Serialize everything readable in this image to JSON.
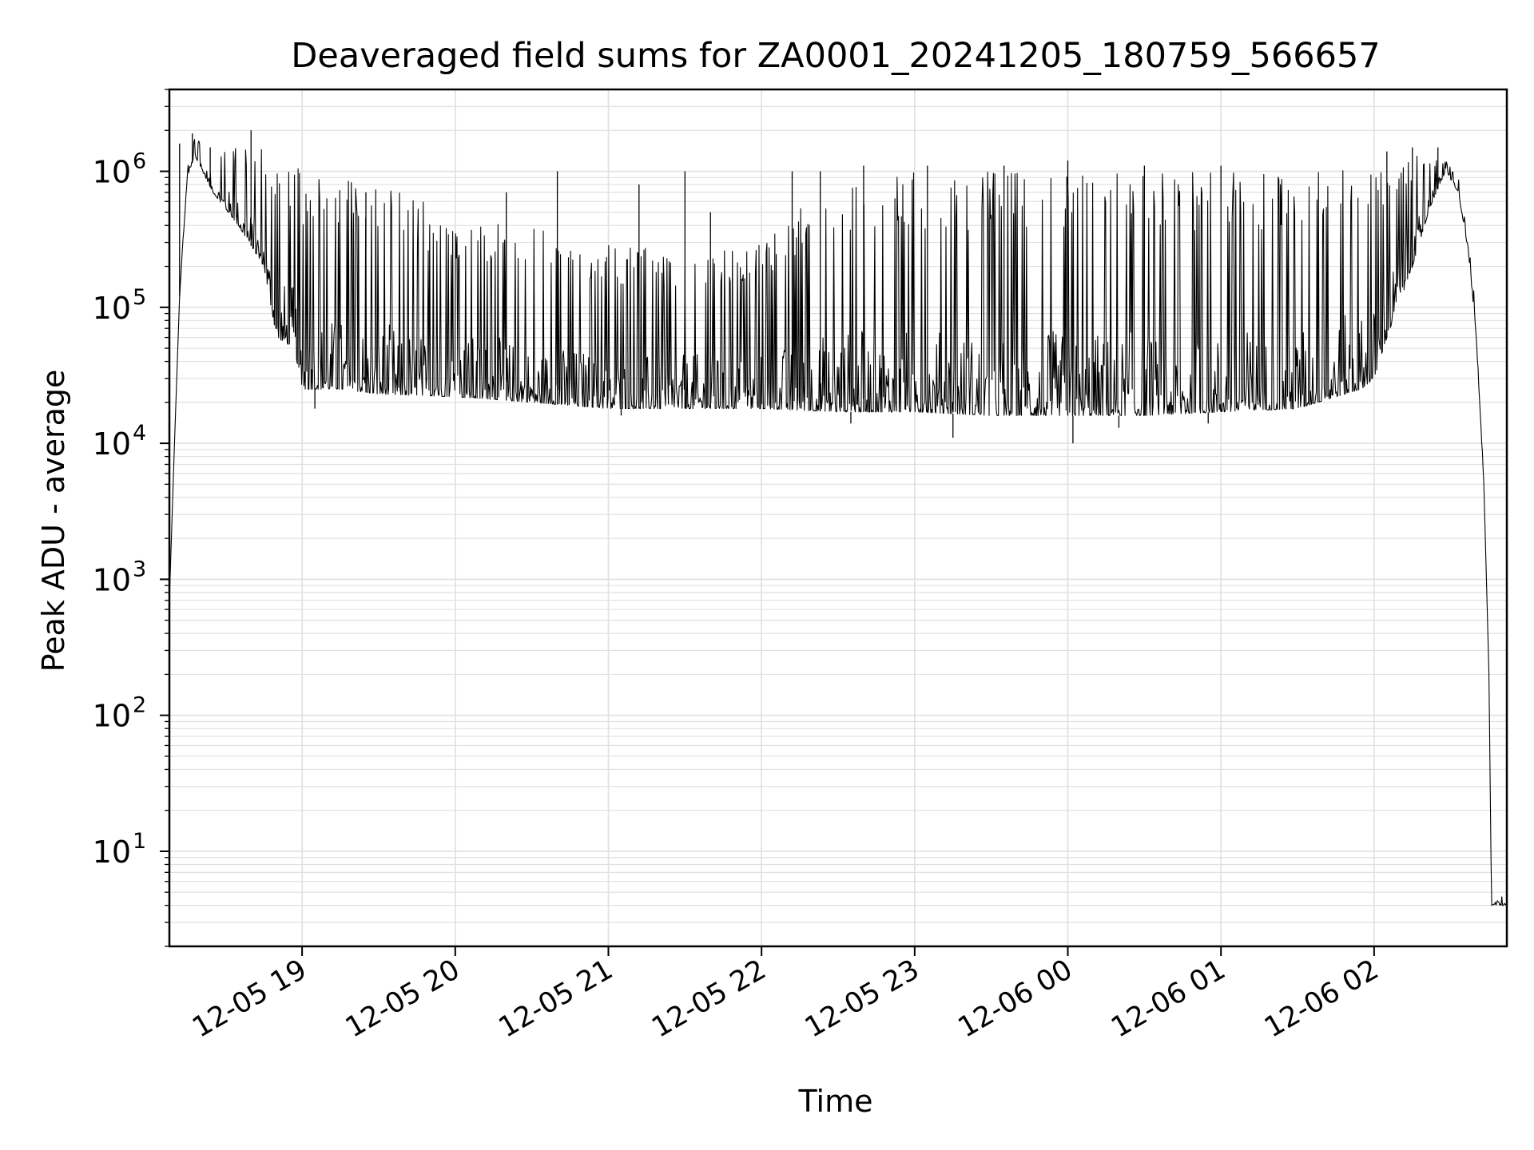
{
  "chart_data": {
    "type": "line",
    "title": "Deaveraged field sums for ZA0001_20241205_180759_566657",
    "xlabel": "Time",
    "ylabel": "Peak ADU - average",
    "y_scale": "log",
    "ylim": [
      2,
      4000000
    ],
    "xlim": [
      "2024-12-05 18:08",
      "2024-12-06 02:52"
    ],
    "grid": true,
    "line_color": "#000000",
    "grid_color": "#e0e0e0",
    "x_ticks": [
      {
        "t": "2024-12-05 19:00",
        "label": "12-05 19"
      },
      {
        "t": "2024-12-05 20:00",
        "label": "12-05 20"
      },
      {
        "t": "2024-12-05 21:00",
        "label": "12-05 21"
      },
      {
        "t": "2024-12-05 22:00",
        "label": "12-05 22"
      },
      {
        "t": "2024-12-05 23:00",
        "label": "12-05 23"
      },
      {
        "t": "2024-12-06 00:00",
        "label": "12-06 00"
      },
      {
        "t": "2024-12-06 01:00",
        "label": "12-06 01"
      },
      {
        "t": "2024-12-06 02:00",
        "label": "12-06 02"
      }
    ],
    "y_ticks": [
      {
        "value": 10,
        "base": "10",
        "exp": "1"
      },
      {
        "value": 100,
        "base": "10",
        "exp": "2"
      },
      {
        "value": 1000,
        "base": "10",
        "exp": "3"
      },
      {
        "value": 10000,
        "base": "10",
        "exp": "4"
      },
      {
        "value": 100000,
        "base": "10",
        "exp": "5"
      },
      {
        "value": 1000000,
        "base": "10",
        "exp": "6"
      }
    ],
    "envelope": [
      {
        "t": "2024-12-05 18:08",
        "lo": 700,
        "hi": 700
      },
      {
        "t": "2024-12-05 18:10",
        "lo": 10000,
        "hi": 10000
      },
      {
        "t": "2024-12-05 18:12",
        "lo": 120000,
        "hi": 120000
      },
      {
        "t": "2024-12-05 18:15",
        "lo": 900000,
        "hi": 1100000
      },
      {
        "t": "2024-12-05 18:18",
        "lo": 1300000,
        "hi": 1800000
      },
      {
        "t": "2024-12-05 18:25",
        "lo": 700000,
        "hi": 1500000
      },
      {
        "t": "2024-12-05 18:35",
        "lo": 400000,
        "hi": 1600000
      },
      {
        "t": "2024-12-05 18:45",
        "lo": 200000,
        "hi": 1500000
      },
      {
        "t": "2024-12-05 18:50",
        "lo": 60000,
        "hi": 1100000
      },
      {
        "t": "2024-12-05 18:57",
        "lo": 50000,
        "hi": 1100000
      },
      {
        "t": "2024-12-05 19:00",
        "lo": 25000,
        "hi": 1000000
      },
      {
        "t": "2024-12-05 19:15",
        "lo": 25000,
        "hi": 900000
      },
      {
        "t": "2024-12-05 19:30",
        "lo": 23000,
        "hi": 800000
      },
      {
        "t": "2024-12-05 20:00",
        "lo": 22000,
        "hi": 500000
      },
      {
        "t": "2024-12-05 20:30",
        "lo": 20000,
        "hi": 400000
      },
      {
        "t": "2024-12-05 21:00",
        "lo": 18000,
        "hi": 300000
      },
      {
        "t": "2024-12-05 21:30",
        "lo": 18000,
        "hi": 250000
      },
      {
        "t": "2024-12-05 22:00",
        "lo": 18000,
        "hi": 300000
      },
      {
        "t": "2024-12-05 22:30",
        "lo": 17000,
        "hi": 1000000
      },
      {
        "t": "2024-12-05 23:00",
        "lo": 17000,
        "hi": 1000000
      },
      {
        "t": "2024-12-05 23:30",
        "lo": 16000,
        "hi": 1000000
      },
      {
        "t": "2024-12-06 00:00",
        "lo": 16000,
        "hi": 1000000
      },
      {
        "t": "2024-12-06 00:30",
        "lo": 16000,
        "hi": 1000000
      },
      {
        "t": "2024-12-06 01:00",
        "lo": 17000,
        "hi": 1000000
      },
      {
        "t": "2024-12-06 01:30",
        "lo": 18000,
        "hi": 1000000
      },
      {
        "t": "2024-12-06 01:55",
        "lo": 25000,
        "hi": 1100000
      },
      {
        "t": "2024-12-06 02:00",
        "lo": 30000,
        "hi": 1100000
      },
      {
        "t": "2024-12-06 02:05",
        "lo": 60000,
        "hi": 1200000
      },
      {
        "t": "2024-12-06 02:15",
        "lo": 200000,
        "hi": 1300000
      },
      {
        "t": "2024-12-06 02:22",
        "lo": 550000,
        "hi": 1300000
      },
      {
        "t": "2024-12-06 02:28",
        "lo": 1000000,
        "hi": 1200000
      },
      {
        "t": "2024-12-06 02:33",
        "lo": 700000,
        "hi": 900000
      },
      {
        "t": "2024-12-06 02:37",
        "lo": 250000,
        "hi": 300000
      },
      {
        "t": "2024-12-06 02:40",
        "lo": 60000,
        "hi": 100000
      },
      {
        "t": "2024-12-06 02:43",
        "lo": 5000,
        "hi": 5000
      },
      {
        "t": "2024-12-06 02:45",
        "lo": 200,
        "hi": 200
      },
      {
        "t": "2024-12-06 02:46",
        "lo": 4,
        "hi": 4
      },
      {
        "t": "2024-12-06 02:52",
        "lo": 4,
        "hi": 5
      }
    ],
    "spikes": [
      {
        "t": "2024-12-05 18:12",
        "y": 1600000
      },
      {
        "t": "2024-12-05 18:17",
        "y": 1900000
      },
      {
        "t": "2024-12-05 18:24",
        "y": 1500000
      },
      {
        "t": "2024-12-05 18:40",
        "y": 2000000
      },
      {
        "t": "2024-12-05 19:25",
        "y": 700000
      },
      {
        "t": "2024-12-05 20:20",
        "y": 700000
      },
      {
        "t": "2024-12-05 20:40",
        "y": 1000000
      },
      {
        "t": "2024-12-05 21:12",
        "y": 800000
      },
      {
        "t": "2024-12-05 21:30",
        "y": 1000000
      },
      {
        "t": "2024-12-05 21:40",
        "y": 500000
      },
      {
        "t": "2024-12-05 22:12",
        "y": 1000000
      },
      {
        "t": "2024-12-05 22:23",
        "y": 1000000
      },
      {
        "t": "2024-12-05 22:40",
        "y": 1100000
      },
      {
        "t": "2024-12-05 23:05",
        "y": 1100000
      },
      {
        "t": "2024-12-05 23:35",
        "y": 1100000
      },
      {
        "t": "2024-12-06 00:00",
        "y": 1200000
      },
      {
        "t": "2024-12-06 00:30",
        "y": 1100000
      },
      {
        "t": "2024-12-06 01:00",
        "y": 1100000
      },
      {
        "t": "2024-12-06 02:05",
        "y": 1400000
      },
      {
        "t": "2024-12-06 02:15",
        "y": 1500000
      },
      {
        "t": "2024-12-06 02:25",
        "y": 1500000
      }
    ],
    "dips": [
      {
        "t": "2024-12-05 19:05",
        "y": 18000
      },
      {
        "t": "2024-12-05 21:05",
        "y": 16000
      },
      {
        "t": "2024-12-05 22:35",
        "y": 14000
      },
      {
        "t": "2024-12-05 23:15",
        "y": 11000
      },
      {
        "t": "2024-12-06 00:02",
        "y": 10000
      },
      {
        "t": "2024-12-06 00:20",
        "y": 13000
      },
      {
        "t": "2024-12-06 00:55",
        "y": 14000
      }
    ]
  }
}
